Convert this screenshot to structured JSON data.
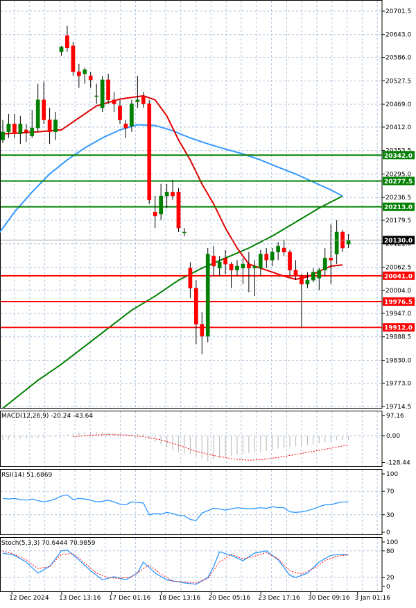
{
  "chart_data": {
    "type": "candlestick",
    "main": {
      "y_ticks": [
        "20701.5",
        "20643.0",
        "20586.0",
        "20527.5",
        "20469.0",
        "20412.0",
        "20353.5",
        "20295.0",
        "20236.5",
        "20179.5",
        "20121.0",
        "20062.5",
        "20004.0",
        "19947.0",
        "19888.5",
        "19830.0",
        "19773.0",
        "19714.5"
      ],
      "ylim": [
        19700,
        20720
      ],
      "current_price": "20130.0",
      "levels": [
        {
          "value": 20342.0,
          "label": "20342.0",
          "color": "#008000"
        },
        {
          "value": 20277.5,
          "label": "20277.5",
          "color": "#008000"
        },
        {
          "value": 20213.0,
          "label": "20213.0",
          "color": "#008000"
        },
        {
          "value": 20041.0,
          "label": "20041.0",
          "color": "#ff0000"
        },
        {
          "value": 19976.5,
          "label": "19976.5",
          "color": "#ff0000"
        },
        {
          "value": 19912.0,
          "label": "19912.0",
          "color": "#ff0000"
        }
      ],
      "candles": [
        [
          20380,
          20430,
          20372,
          20400
        ],
        [
          20400,
          20445,
          20385,
          20420
        ],
        [
          20420,
          20445,
          20385,
          20395
        ],
        [
          20395,
          20440,
          20370,
          20420
        ],
        [
          20405,
          20420,
          20375,
          20400
        ],
        [
          20390,
          20455,
          20385,
          20410
        ],
        [
          20410,
          20520,
          20400,
          20480
        ],
        [
          20480,
          20525,
          20420,
          20430
        ],
        [
          20430,
          20460,
          20370,
          20400
        ],
        [
          20400,
          20450,
          20380,
          20430
        ],
        [
          20600,
          20615,
          20590,
          20612
        ],
        [
          20640,
          20665,
          20600,
          20610
        ],
        [
          20615,
          20625,
          20540,
          20550
        ],
        [
          20550,
          20570,
          20510,
          20540
        ],
        [
          20545,
          20560,
          20520,
          20555
        ],
        [
          20540,
          20550,
          20510,
          20530
        ],
        [
          20490,
          20520,
          20470,
          20490
        ],
        [
          20460,
          20540,
          20450,
          20530
        ],
        [
          20530,
          20545,
          20470,
          20480
        ],
        [
          20480,
          20500,
          20450,
          20470
        ],
        [
          20465,
          20480,
          20420,
          20430
        ],
        [
          20420,
          20430,
          20385,
          20410
        ],
        [
          20415,
          20480,
          20400,
          20470
        ],
        [
          20475,
          20540,
          20460,
          20480
        ],
        [
          20490,
          20500,
          20460,
          20470
        ],
        [
          20470,
          20480,
          20220,
          20230
        ],
        [
          20200,
          20240,
          20160,
          20190
        ],
        [
          20195,
          20270,
          20180,
          20240
        ],
        [
          20240,
          20270,
          20210,
          20250
        ],
        [
          20250,
          20280,
          20230,
          20240
        ],
        [
          20250,
          20260,
          20150,
          20160
        ],
        [
          20150,
          20160,
          20140,
          20150
        ],
        [
          20060,
          20075,
          19985,
          20010
        ],
        [
          20010,
          20030,
          19870,
          19920
        ],
        [
          19920,
          19950,
          19845,
          19890
        ],
        [
          19890,
          20110,
          19875,
          20095
        ],
        [
          20090,
          20115,
          20040,
          20065
        ],
        [
          20060,
          20090,
          20040,
          20075
        ],
        [
          20085,
          20105,
          20045,
          20070
        ],
        [
          20070,
          20075,
          20010,
          20055
        ],
        [
          20055,
          20080,
          20040,
          20065
        ],
        [
          20060,
          20085,
          20020,
          20070
        ],
        [
          20070,
          20100,
          20000,
          20060
        ],
        [
          20060,
          20080,
          19990,
          20065
        ],
        [
          20060,
          20105,
          20040,
          20095
        ],
        [
          20095,
          20110,
          20060,
          20080
        ],
        [
          20080,
          20110,
          20065,
          20100
        ],
        [
          20100,
          20125,
          20080,
          20115
        ],
        [
          20110,
          20130,
          20090,
          20100
        ],
        [
          20100,
          20105,
          20040,
          20055
        ],
        [
          20055,
          20080,
          20030,
          20040
        ],
        [
          20040,
          20045,
          19910,
          20020
        ],
        [
          20020,
          20050,
          20010,
          20030
        ],
        [
          20030,
          20060,
          20025,
          20050
        ],
        [
          20035,
          20060,
          20005,
          20055
        ],
        [
          20055,
          20110,
          20040,
          20085
        ],
        [
          20085,
          20170,
          20020,
          20080
        ],
        [
          20095,
          20180,
          20070,
          20150
        ],
        [
          20150,
          20155,
          20100,
          20110
        ],
        [
          20120,
          20145,
          20110,
          20130
        ]
      ],
      "ma_fast": [
        [
          0,
          20395
        ],
        [
          6,
          20400
        ],
        [
          10,
          20405
        ],
        [
          12,
          20425
        ],
        [
          16,
          20465
        ],
        [
          20,
          20482
        ],
        [
          24,
          20490
        ],
        [
          26,
          20480
        ],
        [
          28,
          20440
        ],
        [
          30,
          20380
        ],
        [
          32,
          20330
        ],
        [
          34,
          20270
        ],
        [
          36,
          20220
        ],
        [
          38,
          20160
        ],
        [
          40,
          20110
        ],
        [
          42,
          20070
        ],
        [
          44,
          20060
        ],
        [
          46,
          20050
        ],
        [
          48,
          20040
        ],
        [
          50,
          20032
        ],
        [
          52,
          20038
        ],
        [
          54,
          20052
        ],
        [
          56,
          20065
        ],
        [
          58,
          20068
        ]
      ],
      "ma_mid": [
        [
          -1,
          20140
        ],
        [
          2,
          20200
        ],
        [
          5,
          20250
        ],
        [
          8,
          20295
        ],
        [
          11,
          20330
        ],
        [
          14,
          20360
        ],
        [
          17,
          20385
        ],
        [
          20,
          20405
        ],
        [
          23,
          20418
        ],
        [
          26,
          20416
        ],
        [
          29,
          20403
        ],
        [
          32,
          20385
        ],
        [
          35,
          20370
        ],
        [
          38,
          20357
        ],
        [
          41,
          20345
        ],
        [
          44,
          20330
        ],
        [
          47,
          20312
        ],
        [
          50,
          20295
        ],
        [
          53,
          20275
        ],
        [
          56,
          20255
        ],
        [
          58,
          20240
        ]
      ],
      "ma_slow": [
        [
          0,
          19710
        ],
        [
          3,
          19745
        ],
        [
          6,
          19780
        ],
        [
          10,
          19820
        ],
        [
          14,
          19865
        ],
        [
          18,
          19910
        ],
        [
          22,
          19955
        ],
        [
          26,
          19990
        ],
        [
          30,
          20030
        ],
        [
          34,
          20060
        ],
        [
          38,
          20085
        ],
        [
          42,
          20110
        ],
        [
          46,
          20140
        ],
        [
          50,
          20175
        ],
        [
          54,
          20210
        ],
        [
          58,
          20240
        ]
      ]
    },
    "macd": {
      "label": "MACD(12,26,9) -20.24 -43.64",
      "y_ticks": [
        "97.16",
        "0.00",
        "-128.44"
      ],
      "ylim": [
        -135,
        105
      ],
      "histogram": [
        -20,
        -18,
        -15,
        -14,
        -12,
        -10,
        -10,
        -8,
        -6,
        -5,
        3,
        8,
        12,
        15,
        18,
        18,
        16,
        16,
        14,
        12,
        10,
        8,
        8,
        9,
        8,
        -15,
        -30,
        -42,
        -55,
        -70,
        -80,
        -85,
        -90,
        -100,
        -110,
        -122,
        -115,
        -108,
        -100,
        -96,
        -92,
        -88,
        -84,
        -80,
        -78,
        -72,
        -66,
        -62,
        -58,
        -55,
        -52,
        -50,
        -46,
        -42,
        -38,
        -32,
        -27,
        -22,
        -20,
        -20
      ],
      "signal": [
        [
          12,
          -5
        ],
        [
          15,
          2
        ],
        [
          18,
          5
        ],
        [
          21,
          3
        ],
        [
          24,
          -5
        ],
        [
          27,
          -20
        ],
        [
          30,
          -45
        ],
        [
          33,
          -75
        ],
        [
          36,
          -95
        ],
        [
          39,
          -110
        ],
        [
          42,
          -118
        ],
        [
          45,
          -112
        ],
        [
          48,
          -100
        ],
        [
          51,
          -85
        ],
        [
          54,
          -70
        ],
        [
          57,
          -55
        ],
        [
          59,
          -44
        ]
      ]
    },
    "rsi": {
      "label": "RSI(14) 51.6869",
      "y_ticks": [
        "100",
        "70",
        "30",
        "0"
      ],
      "ylim": [
        0,
        100
      ],
      "values": [
        [
          0,
          58
        ],
        [
          1,
          57
        ],
        [
          2,
          58
        ],
        [
          3,
          56
        ],
        [
          4,
          55
        ],
        [
          5,
          57
        ],
        [
          6,
          54
        ],
        [
          7,
          52
        ],
        [
          8,
          54
        ],
        [
          9,
          57
        ],
        [
          10,
          62
        ],
        [
          11,
          64
        ],
        [
          12,
          56
        ],
        [
          13,
          58
        ],
        [
          14,
          57
        ],
        [
          15,
          55
        ],
        [
          16,
          52
        ],
        [
          17,
          53
        ],
        [
          18,
          55
        ],
        [
          19,
          52
        ],
        [
          20,
          48
        ],
        [
          21,
          47
        ],
        [
          22,
          52
        ],
        [
          23,
          51
        ],
        [
          24,
          50
        ],
        [
          25,
          30
        ],
        [
          26,
          32
        ],
        [
          27,
          31
        ],
        [
          28,
          34
        ],
        [
          29,
          32
        ],
        [
          30,
          29
        ],
        [
          31,
          28
        ],
        [
          32,
          22
        ],
        [
          33,
          20
        ],
        [
          34,
          33
        ],
        [
          35,
          37
        ],
        [
          36,
          41
        ],
        [
          37,
          40
        ],
        [
          38,
          38
        ],
        [
          39,
          40
        ],
        [
          40,
          42
        ],
        [
          41,
          41
        ],
        [
          42,
          40
        ],
        [
          43,
          41
        ],
        [
          44,
          42
        ],
        [
          45,
          41
        ],
        [
          46,
          44
        ],
        [
          47,
          42
        ],
        [
          48,
          42
        ],
        [
          49,
          35
        ],
        [
          50,
          34
        ],
        [
          51,
          35
        ],
        [
          52,
          37
        ],
        [
          53,
          40
        ],
        [
          54,
          44
        ],
        [
          55,
          47
        ],
        [
          56,
          47
        ],
        [
          57,
          50
        ],
        [
          58,
          52
        ],
        [
          59,
          52
        ]
      ]
    },
    "stoch": {
      "label": "Stoch(5,3,3) 70.6444 70.9859",
      "y_ticks": [
        "100",
        "80",
        "20",
        "0"
      ],
      "ylim": [
        0,
        100
      ],
      "main": [
        [
          0,
          75
        ],
        [
          2,
          70
        ],
        [
          4,
          55
        ],
        [
          6,
          30
        ],
        [
          8,
          45
        ],
        [
          10,
          80
        ],
        [
          11,
          82
        ],
        [
          13,
          60
        ],
        [
          15,
          35
        ],
        [
          17,
          15
        ],
        [
          19,
          22
        ],
        [
          21,
          15
        ],
        [
          23,
          30
        ],
        [
          24,
          55
        ],
        [
          26,
          30
        ],
        [
          28,
          15
        ],
        [
          31,
          8
        ],
        [
          33,
          5
        ],
        [
          35,
          20
        ],
        [
          36,
          45
        ],
        [
          37,
          78
        ],
        [
          39,
          70
        ],
        [
          41,
          58
        ],
        [
          43,
          75
        ],
        [
          45,
          80
        ],
        [
          47,
          60
        ],
        [
          49,
          25
        ],
        [
          50,
          20
        ],
        [
          52,
          30
        ],
        [
          54,
          55
        ],
        [
          56,
          70
        ],
        [
          58,
          72
        ],
        [
          59,
          71
        ]
      ],
      "signal": [
        [
          0,
          80
        ],
        [
          2,
          72
        ],
        [
          4,
          60
        ],
        [
          6,
          40
        ],
        [
          8,
          45
        ],
        [
          10,
          72
        ],
        [
          12,
          74
        ],
        [
          14,
          52
        ],
        [
          16,
          30
        ],
        [
          18,
          20
        ],
        [
          20,
          18
        ],
        [
          22,
          22
        ],
        [
          24,
          40
        ],
        [
          25,
          48
        ],
        [
          27,
          28
        ],
        [
          29,
          12
        ],
        [
          31,
          10
        ],
        [
          33,
          8
        ],
        [
          35,
          18
        ],
        [
          37,
          55
        ],
        [
          39,
          72
        ],
        [
          41,
          62
        ],
        [
          43,
          68
        ],
        [
          45,
          76
        ],
        [
          47,
          62
        ],
        [
          49,
          35
        ],
        [
          51,
          28
        ],
        [
          53,
          40
        ],
        [
          55,
          58
        ],
        [
          57,
          68
        ],
        [
          59,
          71
        ]
      ]
    },
    "x_ticks": [
      {
        "idx": 2.5,
        "label": "12 Dec 2024"
      },
      {
        "idx": 11,
        "label": "13 Dec 13:16"
      },
      {
        "idx": 19.5,
        "label": "17 Dec 01:16"
      },
      {
        "idx": 28,
        "label": "18 Dec 13:16"
      },
      {
        "idx": 36.5,
        "label": "20 Dec 05:16"
      },
      {
        "idx": 45,
        "label": "23 Dec 17:16"
      },
      {
        "idx": 53.5,
        "label": "30 Dec 09:16"
      },
      {
        "idx": 61.5,
        "label": "3 Jan 01:16"
      }
    ],
    "colors": {
      "up": "#008000",
      "down": "#ff0000",
      "ma_fast": "#e00000",
      "ma_mid": "#3399ff",
      "ma_slow": "#008000",
      "rsi": "#1e90ff",
      "macd_signal": "#ff0000",
      "histogram": "#c0c0c0",
      "stoch_main": "#1e90ff",
      "stoch_signal": "#ff0000",
      "grid": "#b0c4de",
      "current_price_bg": "#000000"
    }
  }
}
